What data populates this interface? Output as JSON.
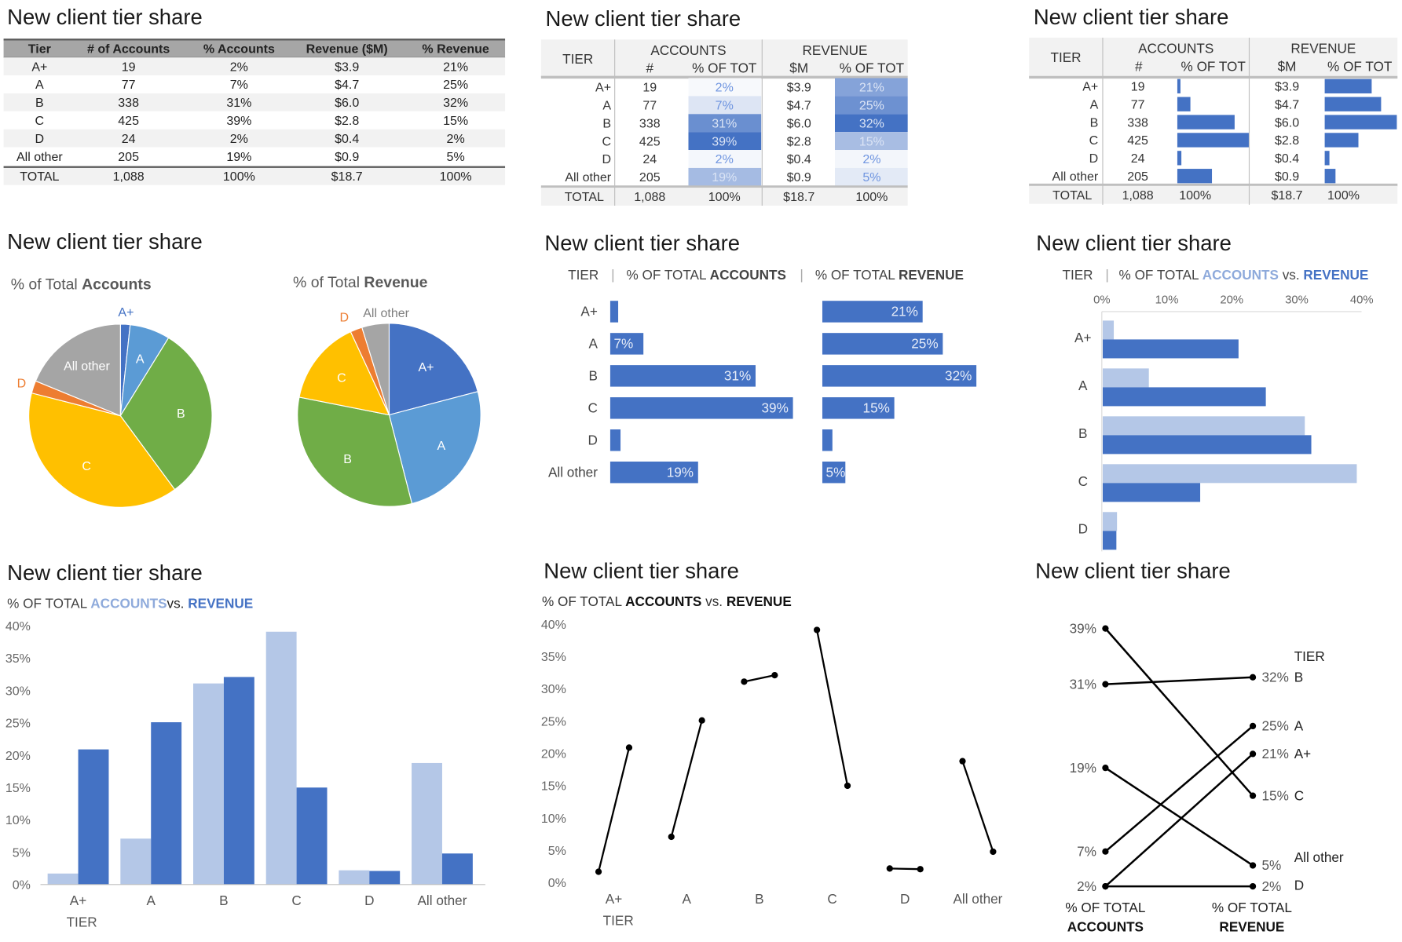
{
  "dataset": {
    "tiers": [
      "A+",
      "A",
      "B",
      "C",
      "D",
      "All other"
    ],
    "accounts": [
      "19",
      "77",
      "338",
      "425",
      "24",
      "205"
    ],
    "pct_accounts": [
      "2%",
      "7%",
      "31%",
      "39%",
      "2%",
      "19%"
    ],
    "revenue": [
      "$3.9",
      "$4.7",
      "$6.0",
      "$2.8",
      "$0.4",
      "$0.9"
    ],
    "pct_revenue": [
      "21%",
      "25%",
      "32%",
      "15%",
      "2%",
      "5%"
    ],
    "total": {
      "label": "TOTAL",
      "accounts": "1,088",
      "pct_accounts": "100%",
      "revenue": "$18.7",
      "pct_revenue": "100%"
    }
  },
  "colors": {
    "accent_dark": "#4472c4",
    "accent_light": "#b4c7e7",
    "pie": [
      "#4472c4",
      "#5b9bd5",
      "#70ad47",
      "#ffc000",
      "#ed7d31",
      "#a5a5a5"
    ]
  },
  "chart_data": [
    {
      "type": "table",
      "title": "New client tier share",
      "columns": [
        "Tier",
        "# of Accounts",
        "% Accounts",
        "Revenue ($M)",
        "% Revenue"
      ]
    },
    {
      "type": "table",
      "title": "New client tier share",
      "style": "heatmap",
      "group_headers": [
        "ACCOUNTS",
        "REVENUE"
      ],
      "columns": [
        "TIER",
        "#",
        "% OF TOT",
        "$M",
        "% OF TOT"
      ]
    },
    {
      "type": "table",
      "title": "New client tier share",
      "style": "data-bars",
      "group_headers": [
        "ACCOUNTS",
        "REVENUE"
      ],
      "columns": [
        "TIER",
        "#",
        "% OF TOT",
        "$M",
        "% OF TOT"
      ]
    },
    {
      "type": "pie",
      "title": "New client tier share",
      "pies": [
        {
          "label": "% of Total ",
          "label_bold": "Accounts",
          "categories": [
            "A+",
            "A",
            "B",
            "C",
            "D",
            "All other"
          ],
          "values": [
            1.7,
            7.1,
            31.1,
            39.1,
            2.2,
            18.8
          ]
        },
        {
          "label": "% of Total ",
          "label_bold": "Revenue",
          "categories": [
            "A+",
            "A",
            "B",
            "C",
            "D",
            "All other"
          ],
          "values": [
            20.9,
            25.1,
            32.1,
            15.0,
            2.1,
            4.8
          ]
        }
      ]
    },
    {
      "type": "bar",
      "orientation": "horizontal",
      "title": "New client tier share",
      "header": {
        "tier": "TIER",
        "sep": "|",
        "prefix": "% OF TOTAL ",
        "accounts": "ACCOUNTS",
        "revenue": "REVENUE"
      },
      "categories": [
        "A+",
        "A",
        "B",
        "C",
        "D",
        "All other"
      ],
      "series": [
        {
          "name": "ACCOUNTS",
          "values": [
            1.7,
            7.1,
            31.1,
            39.1,
            2.2,
            18.8
          ]
        },
        {
          "name": "REVENUE",
          "values": [
            20.9,
            25.1,
            32.1,
            15.0,
            2.1,
            4.8
          ]
        }
      ],
      "labels_accounts": [
        "",
        "7%",
        "31%",
        "39%",
        "",
        "19%"
      ],
      "labels_revenue": [
        "21%",
        "25%",
        "32%",
        "15%",
        "",
        "5%"
      ]
    },
    {
      "type": "bar",
      "orientation": "horizontal",
      "title": "New client tier share",
      "header": {
        "tier": "TIER",
        "sep": "|",
        "prefix": "% OF TOTAL ",
        "accounts": "ACCOUNTS",
        "vs": " vs. ",
        "revenue": "REVENUE"
      },
      "categories": [
        "A+",
        "A",
        "B",
        "C",
        "D"
      ],
      "series": [
        {
          "name": "ACCOUNTS",
          "values": [
            1.7,
            7.1,
            31.1,
            39.1,
            2.2
          ]
        },
        {
          "name": "REVENUE",
          "values": [
            20.9,
            25.1,
            32.1,
            15.0,
            2.1
          ]
        }
      ],
      "xlim": [
        0,
        40
      ],
      "xticks": [
        "0%",
        "10%",
        "20%",
        "30%",
        "40%"
      ]
    },
    {
      "type": "bar",
      "orientation": "vertical",
      "title": "New client tier share",
      "subtitle": {
        "prefix": "% OF TOTAL ",
        "accounts": "ACCOUNTS",
        "vs": "vs. ",
        "revenue": "REVENUE"
      },
      "categories": [
        "A+",
        "A",
        "B",
        "C",
        "D",
        "All other"
      ],
      "series": [
        {
          "name": "ACCOUNTS",
          "values": [
            1.7,
            7.1,
            31.1,
            39.1,
            2.2,
            18.8
          ]
        },
        {
          "name": "REVENUE",
          "values": [
            20.9,
            25.1,
            32.1,
            15.0,
            2.1,
            4.8
          ]
        }
      ],
      "ylim": [
        0,
        40
      ],
      "yticks": [
        "0%",
        "5%",
        "10%",
        "15%",
        "20%",
        "25%",
        "30%",
        "35%",
        "40%"
      ],
      "xlabel": "TIER"
    },
    {
      "type": "scatter",
      "style": "dumbbell",
      "title": "New client tier share",
      "subtitle": {
        "prefix": "% OF TOTAL ",
        "accounts": "ACCOUNTS",
        "vs": " vs. ",
        "revenue": "REVENUE"
      },
      "categories": [
        "A+",
        "A",
        "B",
        "C",
        "D",
        "All other"
      ],
      "series": [
        {
          "name": "ACCOUNTS",
          "values": [
            1.7,
            7.1,
            31.1,
            39.1,
            2.2,
            18.8
          ]
        },
        {
          "name": "REVENUE",
          "values": [
            20.9,
            25.1,
            32.1,
            15.0,
            2.1,
            4.8
          ]
        }
      ],
      "ylim": [
        0,
        40
      ],
      "yticks": [
        "0%",
        "5%",
        "10%",
        "15%",
        "20%",
        "25%",
        "30%",
        "35%",
        "40%"
      ],
      "xlabel": "TIER"
    },
    {
      "type": "line",
      "style": "slope",
      "title": "New client tier share",
      "categories": [
        "A+",
        "A",
        "B",
        "C",
        "D",
        "All other"
      ],
      "series": [
        {
          "name": "ACCOUNTS",
          "values": [
            2,
            7,
            31,
            39,
            2,
            19
          ]
        },
        {
          "name": "REVENUE",
          "values": [
            21,
            25,
            32,
            15,
            2,
            5
          ]
        }
      ],
      "left_labels": [
        "39%",
        "31%",
        "19%",
        "7%",
        "2%"
      ],
      "right_labels": [
        "32%",
        "25%",
        "21%",
        "15%",
        "5%",
        "2%"
      ],
      "right_tiers": [
        "B",
        "A",
        "A+",
        "C",
        "All other",
        "D"
      ],
      "legend_title": "TIER",
      "axis_labels": [
        {
          "line1": "% OF TOTAL",
          "line2": "ACCOUNTS"
        },
        {
          "line1": "% OF TOTAL",
          "line2": "REVENUE"
        }
      ]
    }
  ]
}
